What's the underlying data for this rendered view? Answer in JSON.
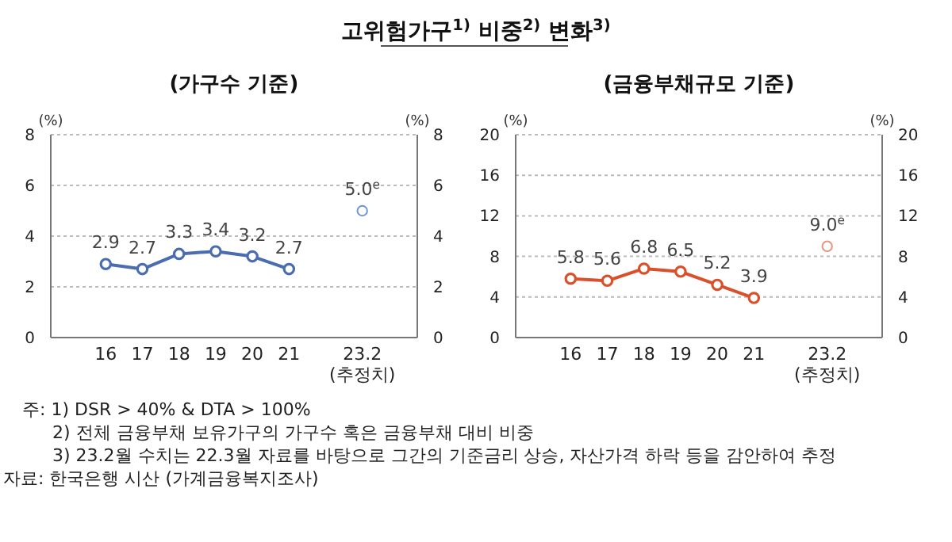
{
  "chart_data": [
    {
      "type": "line",
      "title": "고위험가구$^{1)}$ 비중$^{2)}$ 변화$^{3)}$",
      "subtitle": "(가구수 기준)",
      "ylabel": "(%)",
      "y2label": "(%)",
      "categories": [
        "16",
        "17",
        "18",
        "19",
        "20",
        "21",
        null,
        "23.2\n(추정치)"
      ],
      "series": [
        {
          "color": "#4a6cb0",
          "values": [
            2.9,
            2.7,
            3.3,
            3.4,
            3.2,
            2.7,
            null,
            null
          ],
          "value_labels": [
            "2.9",
            "2.7",
            "3.3",
            "3.4",
            "3.2",
            "2.7",
            null,
            null
          ]
        },
        {
          "type": "scatter",
          "color": "#6f95d8",
          "values": [
            null,
            null,
            null,
            null,
            null,
            null,
            null,
            5.0
          ],
          "value_labels": [
            null,
            null,
            null,
            null,
            null,
            null,
            null,
            "5.0$^{e}$"
          ]
        }
      ],
      "ylim": [
        0,
        8
      ],
      "yticks": [
        0,
        2,
        4,
        6,
        8
      ],
      "y2lim": [
        0,
        8
      ],
      "y2ticks": [
        0,
        2,
        4,
        6,
        8
      ],
      "grid": "y",
      "legend": false,
      "marker": "circle",
      "line_style": "solid",
      "annotations": [
        "주: 1) DSR > 40% & DTA > 100%",
        "2) 전체 금융부채 보유가구의 가구수 혹은 금융부채 대비 비중",
        "3) 23.2월 수치는 22.3월 자료를 바탕으로 그간의 기준금리 상승, 자산가격 하락 등을 감안하여 추정",
        "자료: 한국은행 시산 (가계금융복지조사)"
      ]
    },
    {
      "type": "line",
      "subtitle": "(금융부채규모 기준)",
      "ylabel": "(%)",
      "y2label": "(%)",
      "categories": [
        "16",
        "17",
        "18",
        "19",
        "20",
        "21",
        null,
        "23.2\n(추정치)"
      ],
      "series": [
        {
          "color": "#d9502a",
          "values": [
            5.8,
            5.6,
            6.8,
            6.5,
            5.2,
            3.9,
            null,
            null
          ],
          "value_labels": [
            "5.8",
            "5.6",
            "6.8",
            "6.5",
            "5.2",
            "3.9",
            null,
            null
          ]
        },
        {
          "type": "scatter",
          "color": "#e8957a",
          "values": [
            null,
            null,
            null,
            null,
            null,
            null,
            null,
            9.0
          ],
          "value_labels": [
            null,
            null,
            null,
            null,
            null,
            null,
            null,
            "9.0$^{e}$"
          ]
        }
      ],
      "ylim": [
        0,
        20
      ],
      "yticks": [
        0,
        4,
        8,
        12,
        16,
        20
      ],
      "y2lim": [
        0,
        20
      ],
      "y2ticks": [
        0,
        4,
        8,
        12,
        16,
        20
      ],
      "grid": "y",
      "legend": false,
      "marker": "circle",
      "line_style": "solid"
    }
  ]
}
